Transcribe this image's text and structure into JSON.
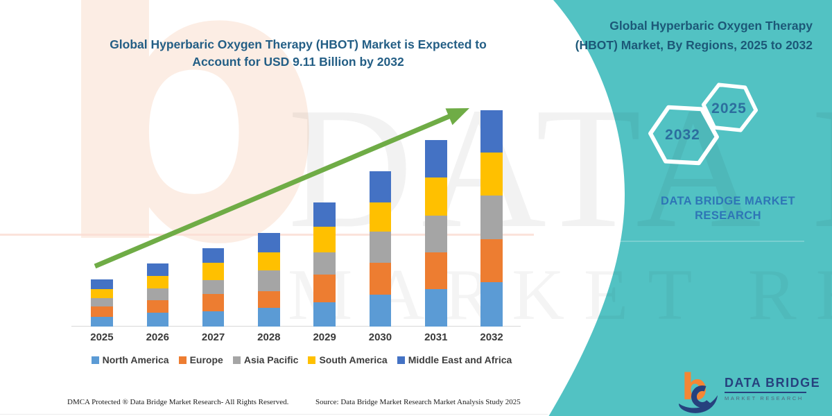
{
  "main_title": {
    "line1": "Global Hyperbaric Oxygen Therapy (HBOT) Market is Expected to",
    "line2": "Account for USD 9.11 Billion by 2032"
  },
  "chart_data": {
    "type": "bar",
    "stacked": true,
    "title": "Global Hyperbaric Oxygen Therapy (HBOT) Market is Expected to Account for USD 9.11 Billion by 2032",
    "unit": "USD Billion",
    "categories": [
      "2025",
      "2026",
      "2027",
      "2028",
      "2029",
      "2030",
      "2031",
      "2032"
    ],
    "series": [
      {
        "name": "North America",
        "color": "#5B9BD5",
        "values": [
          0.41,
          0.56,
          0.63,
          0.79,
          1.02,
          1.32,
          1.56,
          1.87
        ]
      },
      {
        "name": "Europe",
        "color": "#ED7D31",
        "values": [
          0.44,
          0.54,
          0.74,
          0.7,
          1.15,
          1.37,
          1.56,
          1.81
        ]
      },
      {
        "name": "Asia Pacific",
        "color": "#A5A5A5",
        "values": [
          0.34,
          0.49,
          0.58,
          0.88,
          0.96,
          1.32,
          1.56,
          1.85
        ]
      },
      {
        "name": "South America",
        "color": "#FFC000",
        "values": [
          0.39,
          0.54,
          0.74,
          0.76,
          1.06,
          1.22,
          1.61,
          1.81
        ]
      },
      {
        "name": "Middle East and Africa",
        "color": "#4472C4",
        "values": [
          0.39,
          0.52,
          0.59,
          0.82,
          1.03,
          1.3,
          1.56,
          1.77
        ]
      }
    ],
    "totals_estimated": [
      1.97,
      2.65,
      3.28,
      3.95,
      5.22,
      6.53,
      7.85,
      9.11
    ],
    "ylim": [
      0,
      9.5
    ],
    "grid": false,
    "y_axis_shown": false,
    "legend_position": "bottom",
    "annotations": [
      "upward green trend arrow across bars"
    ]
  },
  "side_panel": {
    "bg_color": "#52C2C3",
    "title": "Global Hyperbaric Oxygen Therapy (HBOT) Market, By Regions, 2025 to 2032",
    "hexagons": [
      {
        "label": "2032"
      },
      {
        "label": "2025"
      }
    ],
    "brand_line1": "DATA BRIDGE MARKET",
    "brand_line2": "RESEARCH",
    "logo": {
      "name": "DATA BRIDGE",
      "tagline": "MARKET RESEARCH"
    }
  },
  "footer": {
    "left": "DMCA Protected ® Data Bridge Market Research-  All Rights Reserved.",
    "right": "Source: Data Bridge Market Research  Market Analysis Study 2025"
  },
  "watermarks": {
    "letter": "b",
    "text1": "DATA BRIDGE",
    "text2": "MARKET RESEARCH"
  },
  "colors": {
    "arrow_green": "#6FAC46",
    "teal": "#52C2C3",
    "title_blue": "#235E85",
    "brand_blue": "#2E75B6",
    "logo_navy": "#26417E",
    "logo_orange": "#F58634"
  }
}
